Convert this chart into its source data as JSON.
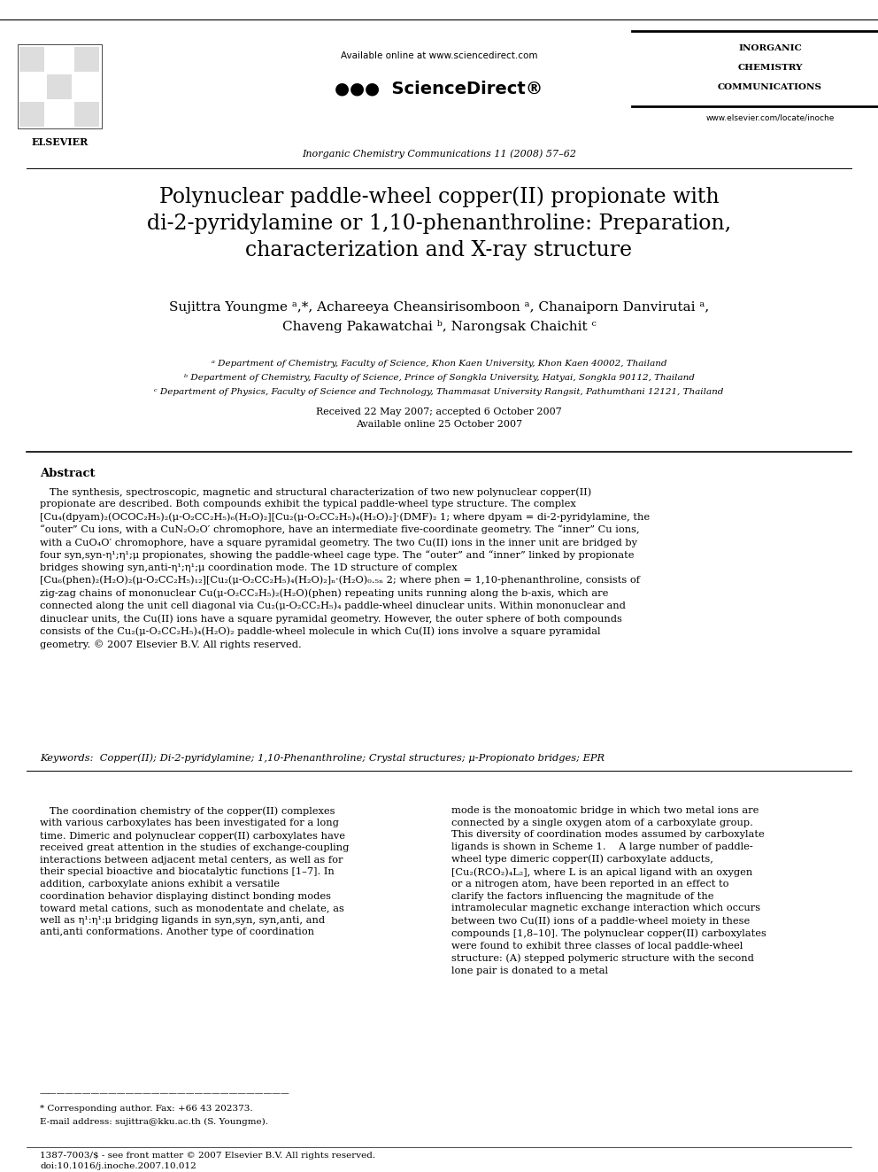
{
  "bg_color": "#ffffff",
  "header": {
    "available_online": "Available online at www.sciencedirect.com",
    "journal_line": "Inorganic Chemistry Communications 11 (2008) 57–62",
    "journal_name_lines": [
      "INORGANIC",
      "CHEMISTRY",
      "COMMUNICATIONS"
    ],
    "elsevier_text": "ELSEVIER",
    "website": "www.elsevier.com/locate/inoche"
  },
  "title": "Polynuclear paddle-wheel copper(II) propionate with\ndi-2-pyridylamine or 1,10-phenanthroline: Preparation,\ncharacterization and X-ray structure",
  "authors": "Sujittra Youngme ᵃ,*, Achareeya Cheansirisomboon ᵃ, Chanaiporn Danvirutai ᵃ,\nChaveng Pakawatchai ᵇ, Narongsak Chaichit ᶜ",
  "affiliations": [
    "ᵃ Department of Chemistry, Faculty of Science, Khon Kaen University, Khon Kaen 40002, Thailand",
    "ᵇ Department of Chemistry, Faculty of Science, Prince of Songkla University, Hatyai, Songkla 90112, Thailand",
    "ᶜ Department of Physics, Faculty of Science and Technology, Thammasat University Rangsit, Pathumthani 12121, Thailand"
  ],
  "received": "Received 22 May 2007; accepted 6 October 2007\nAvailable online 25 October 2007",
  "abstract_title": "Abstract",
  "abstract_text": "   The synthesis, spectroscopic, magnetic and structural characterization of two new polynuclear copper(II) propionate are described. Both compounds exhibit the typical paddle-wheel type structure. The complex [Cu₄(dpyam)₂(OCOC₂H₅)₂(μ-O₂CC₂H₅)₆(H₂O)₂][Cu₂(μ-O₂CC₂H₅)₄(H₂O)₂]·(DMF)₂ 1; where dpyam = di-2-pyridylamine, the “outer” Cu ions, with a CuN₂O₂O′ chromophore, have an intermediate five-coordinate geometry. The “inner” Cu ions, with a CuO₄O′ chromophore, have a square pyramidal geometry. The two Cu(II) ions in the inner unit are bridged by four syn,syn-η¹;η¹;μ propionates, showing the paddle-wheel cage type. The “outer” and “inner” linked by propionate bridges showing syn,anti-η¹;η¹;μ coordination mode. The 1D structure of complex [Cu₆(phen)₂(H₂O)₂(μ-O₂CC₂H₅)₁₂][Cu₂(μ-O₂CC₂H₅)₄(H₂O)₂]ₙ·(H₂O)₀.₅ₙ 2; where phen = 1,10-phenanthroline, consists of zig-zag chains of mononuclear Cu(μ-O₂CC₂H₅)₂(H₂O)(phen) repeating units running along the b-axis, which are connected along the unit cell diagonal via Cu₂(μ-O₂CC₂H₅)₄ paddle-wheel dinuclear units. Within mononuclear and dinuclear units, the Cu(II) ions have a square pyramidal geometry. However, the outer sphere of both compounds consists of the Cu₂(μ-O₂CC₂H₅)₄(H₂O)₂ paddle-wheel molecule in which Cu(II) ions involve a square pyramidal geometry.\n© 2007 Elsevier B.V. All rights reserved.",
  "keywords": "Keywords:  Copper(II); Di-2-pyridylamine; 1,10-Phenanthroline; Crystal structures; μ-Propionato bridges; EPR",
  "body_col1": "   The coordination chemistry of the copper(II) complexes with various carboxylates has been investigated for a long time. Dimeric and polynuclear copper(II) carboxylates have received great attention in the studies of exchange-coupling interactions between adjacent metal centers, as well as for their special bioactive and biocatalytic functions [1–7]. In addition, carboxylate anions exhibit a versatile coordination behavior displaying distinct bonding modes toward metal cations, such as monodentate and chelate, as well as η¹:η¹:μ bridging ligands in syn,syn, syn,anti, and anti,anti conformations. Another type of coordination",
  "body_col2": "mode is the monoatomic bridge in which two metal ions are connected by a single oxygen atom of a carboxylate group. This diversity of coordination modes assumed by carboxylate ligands is shown in Scheme 1.\n   A large number of paddle-wheel type dimeric copper(II) carboxylate adducts, [Cu₂(RCO₂)₄L₂], where L is an apical ligand with an oxygen or a nitrogen atom, have been reported in an effect to clarify the factors influencing the magnitude of the intramolecular magnetic exchange interaction which occurs between two Cu(II) ions of a paddle-wheel moiety in these compounds [1,8–10]. The polynuclear copper(II) carboxylates were found to exhibit three classes of local paddle-wheel structure: (A) stepped polymeric structure with the second lone pair is donated to a metal",
  "footnote1": "* Corresponding author. Fax: +66 43 202373.",
  "footnote2": "E-mail address: sujittra@kku.ac.th (S. Youngme).",
  "footer": "1387-7003/$ - see front matter © 2007 Elsevier B.V. All rights reserved.\ndoi:10.1016/j.inoche.2007.10.012"
}
